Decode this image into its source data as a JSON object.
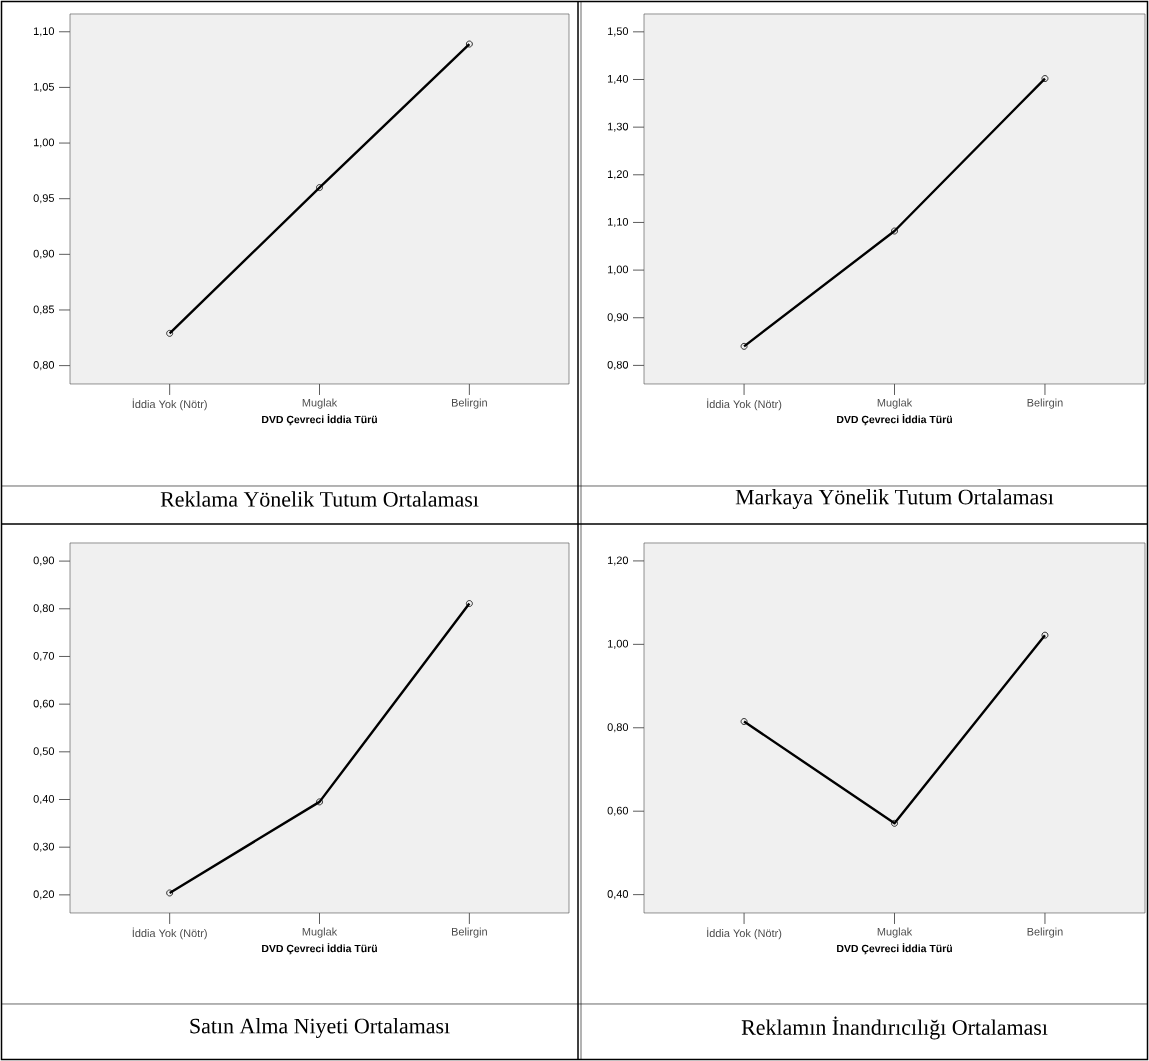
{
  "chart_data": [
    {
      "type": "line",
      "title": "Reklama Yönelik Tutum Ortalaması",
      "xlabel": "DVD Çevreci İddia Türü",
      "categories": [
        "İddia Yok (Nötr)",
        "Muglak",
        "Belirgin"
      ],
      "values": [
        0.829,
        0.96,
        1.089
      ],
      "color": "#000000",
      "marker": "circle",
      "ylim": [
        0.7835,
        1.116
      ],
      "yticks": [
        {
          "value": 0.8,
          "label": "0,80"
        },
        {
          "value": 0.85,
          "label": "0,85"
        },
        {
          "value": 0.9,
          "label": "0,90"
        },
        {
          "value": 0.95,
          "label": "0,95"
        },
        {
          "value": 1.0,
          "label": "1,00"
        },
        {
          "value": 1.05,
          "label": "1,05"
        },
        {
          "value": 1.1,
          "label": "1,10"
        }
      ]
    },
    {
      "type": "line",
      "title": "Markaya Yönelik Tutum Ortalaması",
      "xlabel": "DVD Çevreci İddia Türü",
      "categories": [
        "İddia Yok (Nötr)",
        "Muglak",
        "Belirgin"
      ],
      "values": [
        0.84,
        1.082,
        1.402
      ],
      "color": "#000000",
      "marker": "circle",
      "ylim": [
        0.761,
        1.5375
      ],
      "yticks": [
        {
          "value": 0.8,
          "label": "0,80"
        },
        {
          "value": 0.9,
          "label": "0,90"
        },
        {
          "value": 1.0,
          "label": "1,00"
        },
        {
          "value": 1.1,
          "label": "1,10"
        },
        {
          "value": 1.2,
          "label": "1,20"
        },
        {
          "value": 1.3,
          "label": "1,30"
        },
        {
          "value": 1.4,
          "label": "1,40"
        },
        {
          "value": 1.5,
          "label": "1,50"
        }
      ]
    },
    {
      "type": "line",
      "title": "Satın Alma Niyeti Ortalaması",
      "xlabel": "DVD Çevreci İddia Türü",
      "categories": [
        "İddia Yok (Nötr)",
        "Muglak",
        "Belirgin"
      ],
      "values": [
        0.204,
        0.395,
        0.811
      ],
      "color": "#000000",
      "marker": "circle",
      "ylim": [
        0.162,
        0.938
      ],
      "yticks": [
        {
          "value": 0.2,
          "label": "0,20"
        },
        {
          "value": 0.3,
          "label": "0,30"
        },
        {
          "value": 0.4,
          "label": "0,40"
        },
        {
          "value": 0.5,
          "label": "0,50"
        },
        {
          "value": 0.6,
          "label": "0,60"
        },
        {
          "value": 0.7,
          "label": "0,70"
        },
        {
          "value": 0.8,
          "label": "0,80"
        },
        {
          "value": 0.9,
          "label": "0,90"
        }
      ]
    },
    {
      "type": "line",
      "title": "Reklamın İnandırıcılığı Ortalaması",
      "xlabel": "DVD Çevreci İddia Türü",
      "categories": [
        "İddia Yok (Nötr)",
        "Muglak",
        "Belirgin"
      ],
      "values": [
        0.815,
        0.571,
        1.022
      ],
      "color": "#000000",
      "marker": "circle",
      "ylim": [
        0.356,
        1.243
      ],
      "yticks": [
        {
          "value": 0.4,
          "label": "0,40"
        },
        {
          "value": 0.6,
          "label": "0,60"
        },
        {
          "value": 0.8,
          "label": "0,80"
        },
        {
          "value": 1.0,
          "label": "1,00"
        },
        {
          "value": 1.2,
          "label": "1,20"
        }
      ]
    }
  ]
}
